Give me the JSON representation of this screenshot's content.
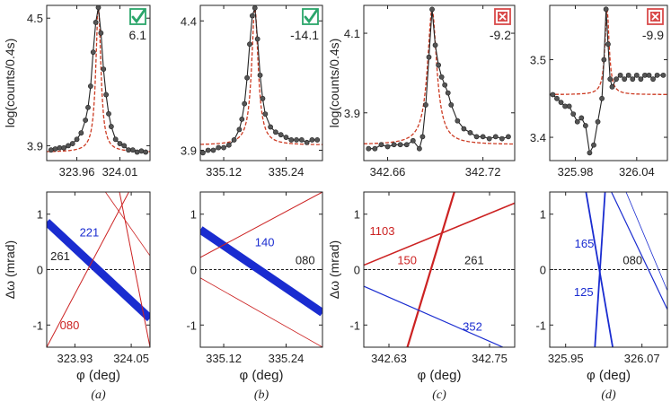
{
  "colors": {
    "data_line": "#222222",
    "marker_fill": "#555555",
    "fit_line": "#cc3a22",
    "ok_badge": "#2aa56a",
    "fail_badge": "#d94a4a",
    "red_line": "#cc2222",
    "blue_line": "#1a2cd0"
  },
  "icons": {
    "ok": "checkmark-icon",
    "fail": "cross-icon"
  },
  "chart_data": [
    {
      "type": "line",
      "panel": "a",
      "row": "top",
      "ylabel": "log(counts/0.4s)",
      "xticks": [
        "323.96",
        "324.01"
      ],
      "xtick_values": [
        323.96,
        324.01
      ],
      "yticks": [
        "4.5",
        "3.9"
      ],
      "ytick_values": [
        4.5,
        3.9
      ],
      "xlim": [
        323.925,
        324.045
      ],
      "ylim": [
        3.83,
        4.56
      ],
      "score": "6.1",
      "status": "ok",
      "peak": {
        "center": 323.985,
        "width": 0.0035,
        "base": 3.87,
        "height": 0.69
      },
      "measured": {
        "x": [
          323.93,
          323.935,
          323.94,
          323.945,
          323.95,
          323.955,
          323.96,
          323.965,
          323.97,
          323.973,
          323.976,
          323.979,
          323.982,
          323.985,
          323.988,
          323.991,
          323.994,
          323.997,
          324.0,
          324.005,
          324.01,
          324.015,
          324.02,
          324.025,
          324.03,
          324.035,
          324.04
        ],
        "y": [
          3.88,
          3.885,
          3.89,
          3.89,
          3.9,
          3.91,
          3.93,
          3.96,
          4.02,
          4.08,
          4.18,
          4.34,
          4.48,
          4.55,
          4.43,
          4.26,
          4.14,
          4.05,
          3.99,
          3.93,
          3.91,
          3.9,
          3.88,
          3.88,
          3.87,
          3.875,
          3.87
        ]
      }
    },
    {
      "type": "line",
      "panel": "b",
      "row": "top",
      "ylabel": "",
      "xticks": [
        "335.12",
        "335.24"
      ],
      "xtick_values": [
        335.12,
        335.24
      ],
      "yticks": [
        "4.4",
        "3.9"
      ],
      "ytick_values": [
        4.4,
        3.9
      ],
      "xlim": [
        335.075,
        335.31
      ],
      "ylim": [
        3.86,
        4.46
      ],
      "score": "-14.1",
      "status": "ok",
      "peak": {
        "center": 335.18,
        "width": 0.0075,
        "base": 3.92,
        "height": 0.53
      },
      "measured": {
        "x": [
          335.08,
          335.09,
          335.1,
          335.11,
          335.12,
          335.13,
          335.14,
          335.15,
          335.155,
          335.16,
          335.165,
          335.17,
          335.175,
          335.18,
          335.185,
          335.19,
          335.195,
          335.2,
          335.21,
          335.22,
          335.23,
          335.24,
          335.25,
          335.26,
          335.27,
          335.28,
          335.29,
          335.3
        ],
        "y": [
          3.89,
          3.9,
          3.9,
          3.91,
          3.91,
          3.92,
          3.94,
          3.98,
          4.02,
          4.08,
          4.18,
          4.31,
          4.42,
          4.45,
          4.33,
          4.19,
          4.1,
          4.04,
          3.99,
          3.97,
          3.96,
          3.95,
          3.94,
          3.94,
          3.94,
          3.93,
          3.94,
          3.94
        ]
      }
    },
    {
      "type": "line",
      "panel": "c",
      "row": "top",
      "ylabel": "log(counts/0.4s)",
      "xticks": [
        "342.66",
        "342.72"
      ],
      "xtick_values": [
        342.66,
        342.72
      ],
      "yticks": [
        "4.1",
        "3.9"
      ],
      "ytick_values": [
        4.1,
        3.9
      ],
      "xlim": [
        342.645,
        342.74
      ],
      "ylim": [
        3.78,
        4.17
      ],
      "score": "-9.2",
      "status": "fail",
      "peak": {
        "center": 342.688,
        "width": 0.0035,
        "base": 3.82,
        "height": 0.34
      },
      "measured": {
        "x": [
          342.648,
          342.652,
          342.656,
          342.66,
          342.664,
          342.668,
          342.672,
          342.676,
          342.68,
          342.682,
          342.684,
          342.686,
          342.688,
          342.69,
          342.692,
          342.694,
          342.696,
          342.698,
          342.7,
          342.704,
          342.708,
          342.712,
          342.716,
          342.72,
          342.724,
          342.728,
          342.732,
          342.736
        ],
        "y": [
          3.81,
          3.81,
          3.82,
          3.815,
          3.82,
          3.82,
          3.82,
          3.83,
          3.81,
          3.84,
          3.92,
          4.04,
          4.16,
          4.07,
          4.02,
          3.99,
          3.97,
          3.95,
          3.92,
          3.88,
          3.86,
          3.85,
          3.84,
          3.84,
          3.835,
          3.84,
          3.835,
          3.84
        ]
      }
    },
    {
      "type": "line",
      "panel": "d",
      "row": "top",
      "ylabel": "",
      "xticks": [
        "325.98",
        "326.04"
      ],
      "xtick_values": [
        325.98,
        326.04
      ],
      "yticks": [
        "3.5",
        "3.4"
      ],
      "ytick_values": [
        3.5,
        3.4
      ],
      "xlim": [
        325.955,
        326.07
      ],
      "ylim": [
        3.37,
        3.57
      ],
      "score": "-9.9",
      "status": "fail",
      "peak": {
        "center": 326.011,
        "width": 0.0025,
        "base": 3.455,
        "height": 0.11
      },
      "measured": {
        "x": [
          325.958,
          325.962,
          325.966,
          325.97,
          325.974,
          325.978,
          325.982,
          325.986,
          325.99,
          325.994,
          325.998,
          326.002,
          326.006,
          326.008,
          326.01,
          326.012,
          326.014,
          326.016,
          326.02,
          326.024,
          326.028,
          326.032,
          326.036,
          326.04,
          326.044,
          326.048,
          326.052,
          326.056,
          326.06,
          326.066
        ],
        "y": [
          3.455,
          3.45,
          3.445,
          3.44,
          3.44,
          3.43,
          3.42,
          3.425,
          3.415,
          3.38,
          3.39,
          3.42,
          3.45,
          3.5,
          3.565,
          3.52,
          3.475,
          3.465,
          3.475,
          3.48,
          3.475,
          3.48,
          3.475,
          3.48,
          3.475,
          3.48,
          3.48,
          3.475,
          3.48,
          3.48
        ]
      }
    },
    {
      "type": "line",
      "panel": "a",
      "row": "bottom",
      "ylabel": "Δω (mrad)",
      "xlabel": "φ (deg)",
      "panel_label": "(a)",
      "xticks": [
        "323.93",
        "324.05"
      ],
      "xtick_values": [
        323.93,
        324.05
      ],
      "yticks": [
        "1",
        "0",
        "-1"
      ],
      "ytick_values": [
        1,
        0,
        -1
      ],
      "xlim": [
        323.87,
        324.09
      ],
      "ylim": [
        -1.4,
        1.4
      ],
      "lines": [
        {
          "x": [
            323.87,
            324.09
          ],
          "y": [
            0.86,
            -0.88
          ],
          "color": "blue",
          "width": 9
        },
        {
          "x": [
            323.87,
            324.045
          ],
          "y": [
            -1.4,
            1.4
          ],
          "color": "red",
          "width": 1
        },
        {
          "x": [
            324.025,
            324.09
          ],
          "y": [
            1.4,
            -1.4
          ],
          "color": "red",
          "width": 1
        },
        {
          "x": [
            323.995,
            324.09
          ],
          "y": [
            1.4,
            0.25
          ],
          "color": "red",
          "width": 0.8
        }
      ],
      "labels": [
        {
          "text": "221",
          "x": 323.94,
          "y": 0.6,
          "color": "blue"
        },
        {
          "text": "261",
          "x": 323.878,
          "y": 0.17,
          "color": "black"
        },
        {
          "text": "080",
          "x": 323.898,
          "y": -1.08,
          "color": "red"
        }
      ]
    },
    {
      "type": "line",
      "panel": "b",
      "row": "bottom",
      "ylabel": "",
      "xlabel": "φ (deg)",
      "panel_label": "(b)",
      "xticks": [
        "335.12",
        "335.24"
      ],
      "xtick_values": [
        335.12,
        335.24
      ],
      "yticks": [
        "1",
        "0",
        "-1"
      ],
      "ytick_values": [
        1,
        0,
        -1
      ],
      "xlim": [
        335.075,
        335.31
      ],
      "ylim": [
        -1.4,
        1.4
      ],
      "lines": [
        {
          "x": [
            335.075,
            335.31
          ],
          "y": [
            0.72,
            -0.78
          ],
          "color": "blue",
          "width": 9
        },
        {
          "x": [
            335.075,
            335.31
          ],
          "y": [
            0.22,
            1.4
          ],
          "color": "red",
          "width": 1
        },
        {
          "x": [
            335.075,
            335.31
          ],
          "y": [
            -0.15,
            -1.4
          ],
          "color": "red",
          "width": 0.8
        }
      ],
      "labels": [
        {
          "text": "140",
          "x": 335.18,
          "y": 0.42,
          "color": "blue"
        },
        {
          "text": "080",
          "x": 335.258,
          "y": 0.1,
          "color": "black"
        }
      ]
    },
    {
      "type": "line",
      "panel": "c",
      "row": "bottom",
      "ylabel": "Δω (mrad)",
      "xlabel": "φ (deg)",
      "panel_label": "(c)",
      "xticks": [
        "342.63",
        "342.75"
      ],
      "xtick_values": [
        342.63,
        342.75
      ],
      "yticks": [
        "1",
        "0",
        "-1"
      ],
      "ytick_values": [
        1,
        0,
        -1
      ],
      "xlim": [
        342.6,
        342.78
      ],
      "ylim": [
        -1.4,
        1.4
      ],
      "lines": [
        {
          "x": [
            342.6,
            342.78
          ],
          "y": [
            0.08,
            1.2
          ],
          "color": "red",
          "width": 1.6
        },
        {
          "x": [
            342.652,
            342.708
          ],
          "y": [
            -1.4,
            1.4
          ],
          "color": "red",
          "width": 2.2
        },
        {
          "x": [
            342.6,
            342.766
          ],
          "y": [
            -0.3,
            -1.4
          ],
          "color": "blue",
          "width": 1.2
        }
      ],
      "labels": [
        {
          "text": "1103",
          "x": 342.607,
          "y": 0.62,
          "color": "red"
        },
        {
          "text": "150",
          "x": 342.64,
          "y": 0.1,
          "color": "red"
        },
        {
          "text": "261",
          "x": 342.72,
          "y": 0.1,
          "color": "black"
        },
        {
          "text": "352",
          "x": 342.718,
          "y": -1.1,
          "color": "blue"
        }
      ]
    },
    {
      "type": "line",
      "panel": "d",
      "row": "bottom",
      "ylabel": "",
      "xlabel": "φ (deg)",
      "panel_label": "(d)",
      "xticks": [
        "325.95",
        "326.07"
      ],
      "xtick_values": [
        325.95,
        326.07
      ],
      "yticks": [
        "1",
        "0",
        "-1"
      ],
      "ytick_values": [
        1,
        0,
        -1
      ],
      "xlim": [
        325.925,
        326.11
      ],
      "ylim": [
        -1.4,
        1.4
      ],
      "lines": [
        {
          "x": [
            325.982,
            326.024
          ],
          "y": [
            1.4,
            -1.4
          ],
          "color": "blue",
          "width": 1.8
        },
        {
          "x": [
            326.012,
            325.996
          ],
          "y": [
            1.4,
            -1.4
          ],
          "color": "blue",
          "width": 1.8
        },
        {
          "x": [
            326.022,
            326.11
          ],
          "y": [
            1.4,
            -0.72
          ],
          "color": "blue",
          "width": 1.2
        },
        {
          "x": [
            326.045,
            326.11
          ],
          "y": [
            1.4,
            -0.38
          ],
          "color": "blue",
          "width": 0.8
        }
      ],
      "labels": [
        {
          "text": "165",
          "x": 325.964,
          "y": 0.4,
          "color": "blue"
        },
        {
          "text": "080",
          "x": 326.04,
          "y": 0.1,
          "color": "black"
        },
        {
          "text": "125",
          "x": 325.963,
          "y": -0.48,
          "color": "blue"
        }
      ]
    }
  ]
}
